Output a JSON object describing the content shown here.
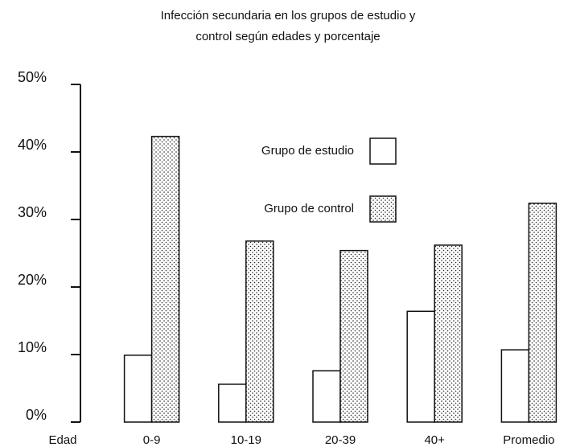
{
  "chart_data": {
    "type": "bar",
    "title": [
      "Infección secundaria en los grupos de estudio y",
      "control según edades y porcentaje"
    ],
    "x_label": "Edad",
    "categories": [
      "0-9",
      "10-19",
      "20-39",
      "40+",
      "Promedio"
    ],
    "series": [
      {
        "name": "Grupo de estudio",
        "color": "#ffffff",
        "values": [
          9.9,
          5.6,
          7.6,
          16.4,
          10.7
        ]
      },
      {
        "name": "Grupo de control",
        "color": "#ffffff",
        "pattern": "dots",
        "values": [
          42.3,
          26.8,
          25.4,
          26.2,
          32.4
        ]
      }
    ],
    "ylim": [
      0,
      50
    ],
    "yticks": [
      {
        "value": 0,
        "label": "0%"
      },
      {
        "value": 10,
        "label": "10%"
      },
      {
        "value": 20,
        "label": "20%"
      },
      {
        "value": 30,
        "label": "30%"
      },
      {
        "value": 40,
        "label": "40%"
      },
      {
        "value": 50,
        "label": "50%"
      }
    ],
    "grid": false
  }
}
